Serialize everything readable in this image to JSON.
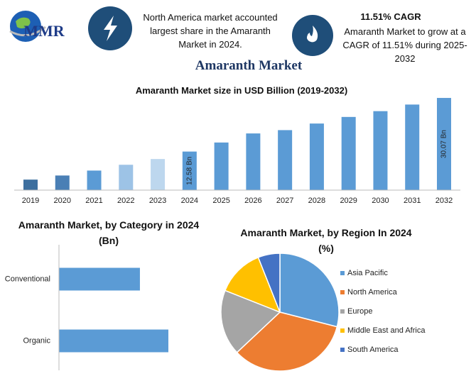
{
  "header": {
    "logo": "MMR",
    "info_1": "North America market accounted largest share in the Amaranth Market in 2024.",
    "info_2_title": "11.51% CAGR",
    "info_2": "Amaranth Market to grow at a CAGR of 11.51% during 2025-2032",
    "title": "Amaranth Market"
  },
  "chart_data": [
    {
      "type": "bar",
      "title": "Amaranth Market size in USD Billion (2019-2032)",
      "categories": [
        "2019",
        "2020",
        "2021",
        "2022",
        "2023",
        "2024",
        "2025",
        "2026",
        "2027",
        "2028",
        "2029",
        "2030",
        "2031",
        "2032"
      ],
      "values": [
        3.43,
        4.77,
        6.38,
        8.27,
        10.15,
        12.58,
        15.53,
        18.49,
        19.57,
        21.72,
        23.87,
        25.76,
        27.91,
        30.07
      ],
      "value_labels": [
        null,
        null,
        null,
        null,
        null,
        "12.58 Bn",
        null,
        null,
        null,
        null,
        null,
        null,
        null,
        "30.07 Bn"
      ],
      "colors": [
        "#3d6f9f",
        "#4a7fb5",
        "#5b9bd5",
        "#9dc3e6",
        "#bdd7ee",
        "#5b9bd5",
        "#5b9bd5",
        "#5b9bd5",
        "#5b9bd5",
        "#5b9bd5",
        "#5b9bd5",
        "#5b9bd5",
        "#5b9bd5",
        "#5b9bd5"
      ],
      "ylim": [
        0,
        32
      ]
    },
    {
      "type": "hbar",
      "title": "Amaranth Market, by Category in 2024 (Bn)",
      "categories": [
        "Conventional",
        "Organic"
      ],
      "values": [
        5.35,
        7.23
      ],
      "color": "#5b9bd5",
      "xlim": [
        0,
        9.25
      ]
    },
    {
      "type": "pie",
      "title": "Amaranth Market, by Region In 2024 (%)",
      "categories": [
        "Asia Pacific",
        "North America",
        "Europe",
        "Middle East and Africa",
        "South America"
      ],
      "values": [
        29,
        34,
        18,
        13,
        6
      ],
      "colors": [
        "#5b9bd5",
        "#ed7d31",
        "#a5a5a5",
        "#ffc000",
        "#4472c4"
      ]
    }
  ]
}
